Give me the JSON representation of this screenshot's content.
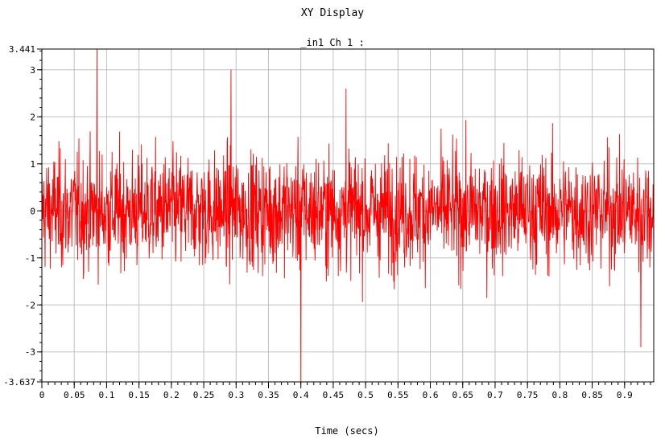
{
  "window": {
    "title": "XY Display"
  },
  "chart_data": {
    "type": "line",
    "title": "XY Display",
    "subtitle": "_in1  Ch 1 :",
    "xlabel": "Time (secs)",
    "ylabel": "",
    "xlim": [
      0,
      0.945
    ],
    "ylim": [
      -3.637,
      3.441
    ],
    "x_ticks": [
      "0",
      "0.05",
      "0.1",
      "0.15",
      "0.2",
      "0.25",
      "0.3",
      "0.35",
      "0.4",
      "0.45",
      "0.5",
      "0.55",
      "0.6",
      "0.65",
      "0.7",
      "0.75",
      "0.8",
      "0.85",
      "0.9"
    ],
    "x_tick_values": [
      0,
      0.05,
      0.1,
      0.15,
      0.2,
      0.25,
      0.3,
      0.35,
      0.4,
      0.45,
      0.5,
      0.55,
      0.6,
      0.65,
      0.7,
      0.75,
      0.8,
      0.85,
      0.9
    ],
    "y_ticks": [
      "3.441",
      "3",
      "2",
      "1",
      "0",
      "-1",
      "-2",
      "-3",
      "-3.637"
    ],
    "y_tick_values": [
      3.441,
      3,
      2,
      1,
      0,
      -1,
      -2,
      -3,
      -3.637
    ],
    "grid": true,
    "series": [
      {
        "color": "#ff0000",
        "description": "Gaussian-like noise signal, zero mean, sampled densely over 0–0.945 s; peaks near 3.441 at t≈0.085 s and minimum near -3.637 at t≈0.40 s",
        "sample_count": 1900,
        "std": 0.85,
        "mean": 0,
        "extremes": [
          {
            "x": 0.085,
            "y": 3.441
          },
          {
            "x": 0.4,
            "y": -3.637
          },
          {
            "x": 0.47,
            "y": 2.6
          },
          {
            "x": 0.292,
            "y": 3.0
          },
          {
            "x": 0.925,
            "y": -2.9
          }
        ]
      }
    ]
  }
}
